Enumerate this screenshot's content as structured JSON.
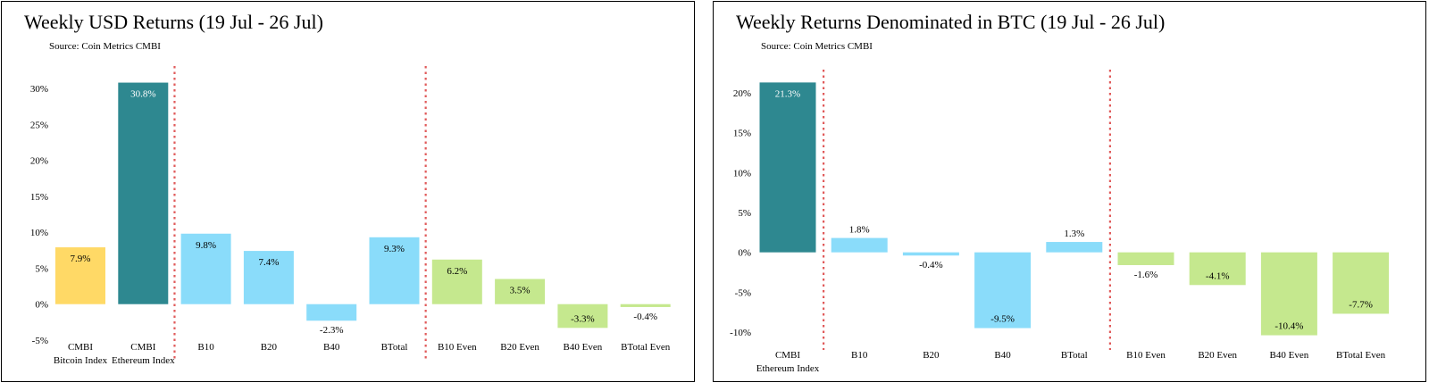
{
  "chart_data": [
    {
      "type": "bar",
      "title": "Weekly USD Returns (19 Jul - 26 Jul)",
      "source": "Source: Coin Metrics CMBI",
      "categories": [
        [
          "CMBI",
          "Bitcoin Index"
        ],
        [
          "CMBI",
          "Ethereum Index"
        ],
        [
          "B10"
        ],
        [
          "B20"
        ],
        [
          "B40"
        ],
        [
          "BTotal"
        ],
        [
          "B10 Even"
        ],
        [
          "B20 Even"
        ],
        [
          "B40 Even"
        ],
        [
          "BTotal Even"
        ]
      ],
      "values": [
        7.9,
        30.8,
        9.8,
        7.4,
        -2.3,
        9.3,
        6.2,
        3.5,
        -3.3,
        -0.4
      ],
      "data_labels": [
        "7.9%",
        "30.8%",
        "9.8%",
        "7.4%",
        "-2.3%",
        "9.3%",
        "6.2%",
        "3.5%",
        "-3.3%",
        "-0.4%"
      ],
      "colors": [
        "#FFD966",
        "#2E8890",
        "#8ADCFA",
        "#8ADCFA",
        "#8ADCFA",
        "#8ADCFA",
        "#C5E88E",
        "#C5E88E",
        "#C5E88E",
        "#C5E88E"
      ],
      "label_colors": [
        "#000000",
        "#ffffff",
        "#000000",
        "#000000",
        "#000000",
        "#000000",
        "#000000",
        "#000000",
        "#000000",
        "#000000"
      ],
      "ylim": [
        -5,
        30
      ],
      "yticks": [
        -5,
        0,
        5,
        10,
        15,
        20,
        25,
        30
      ],
      "ytick_labels": [
        "-5%",
        "0%",
        "5%",
        "10%",
        "15%",
        "20%",
        "25%",
        "30%"
      ],
      "separators_after": [
        1,
        5
      ],
      "separator_color": "#E05A5A",
      "grid": false,
      "legend": "none"
    },
    {
      "type": "bar",
      "title": "Weekly Returns Denominated in BTC (19 Jul - 26 Jul)",
      "source": "Source: Coin Metrics CMBI",
      "categories": [
        [
          "CMBI",
          "Ethereum Index"
        ],
        [
          "B10"
        ],
        [
          "B20"
        ],
        [
          "B40"
        ],
        [
          "BTotal"
        ],
        [
          "B10 Even"
        ],
        [
          "B20 Even"
        ],
        [
          "B40 Even"
        ],
        [
          "BTotal Even"
        ]
      ],
      "values": [
        21.3,
        1.8,
        -0.4,
        -9.5,
        1.3,
        -1.6,
        -4.1,
        -10.4,
        -7.7
      ],
      "data_labels": [
        "21.3%",
        "1.8%",
        "-0.4%",
        "-9.5%",
        "1.3%",
        "-1.6%",
        "-4.1%",
        "-10.4%",
        "-7.7%"
      ],
      "colors": [
        "#2E8890",
        "#8ADCFA",
        "#8ADCFA",
        "#8ADCFA",
        "#8ADCFA",
        "#C5E88E",
        "#C5E88E",
        "#C5E88E",
        "#C5E88E"
      ],
      "label_colors": [
        "#ffffff",
        "#000000",
        "#000000",
        "#000000",
        "#000000",
        "#000000",
        "#000000",
        "#000000",
        "#000000"
      ],
      "ylim": [
        -10,
        20
      ],
      "yticks": [
        -10,
        -5,
        0,
        5,
        10,
        15,
        20
      ],
      "ytick_labels": [
        "-10%",
        "-5%",
        "0%",
        "5%",
        "10%",
        "15%",
        "20%"
      ],
      "separators_after": [
        0,
        4
      ],
      "separator_color": "#E05A5A",
      "grid": false,
      "legend": "none"
    }
  ]
}
